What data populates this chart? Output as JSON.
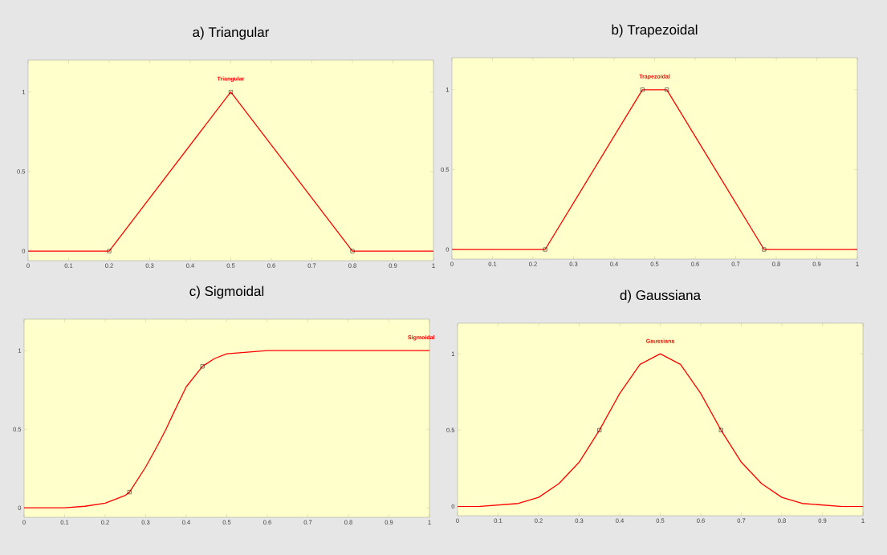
{
  "chart_data": [
    {
      "type": "line",
      "title": "a) Triangular",
      "xlim": [
        0,
        1
      ],
      "ylim": [
        -0.06,
        1.2
      ],
      "xticks": [
        0,
        0.1,
        0.2,
        0.3,
        0.4,
        0.5,
        0.6,
        0.7,
        0.8,
        0.9,
        1
      ],
      "yticks": [
        0,
        0.5,
        1
      ],
      "grid": false,
      "series": [
        {
          "name": "Triangular",
          "color": "#ff0000",
          "marker": "none",
          "x": [
            0,
            0.2,
            0.5,
            0.8,
            1
          ],
          "values": [
            0,
            0,
            1,
            0,
            0
          ]
        },
        {
          "color": "#000000",
          "type": "scatter",
          "marker": "square",
          "x": [
            0.2,
            0.5,
            0.8
          ],
          "values": [
            0,
            1,
            0
          ]
        }
      ]
    },
    {
      "type": "line",
      "title": "b) Trapezoidal",
      "xlim": [
        0,
        1
      ],
      "ylim": [
        -0.06,
        1.2
      ],
      "xticks": [
        0,
        0.1,
        0.2,
        0.3,
        0.4,
        0.5,
        0.6,
        0.7,
        0.8,
        0.9,
        1
      ],
      "yticks": [
        0,
        0.5,
        1
      ],
      "grid": false,
      "series": [
        {
          "name": "Trapezoidal",
          "color": "#ff0000",
          "marker": "none",
          "x": [
            0,
            0.23,
            0.47,
            0.53,
            0.77,
            1
          ],
          "values": [
            0,
            0,
            1,
            1,
            0,
            0
          ]
        },
        {
          "color": "#000000",
          "type": "scatter",
          "marker": "square",
          "x": [
            0.23,
            0.47,
            0.53,
            0.77
          ],
          "values": [
            0,
            1,
            1,
            0
          ]
        }
      ]
    },
    {
      "type": "line",
      "title": "c) Sigmoidal",
      "xlim": [
        0,
        1
      ],
      "ylim": [
        -0.06,
        1.2
      ],
      "xticks": [
        0,
        0.1,
        0.2,
        0.3,
        0.4,
        0.5,
        0.6,
        0.7,
        0.8,
        0.9,
        1
      ],
      "yticks": [
        0,
        0.5,
        1
      ],
      "grid": false,
      "series": [
        {
          "name": "Sigmoidal",
          "color": "#ff0000",
          "marker": "none",
          "x": [
            0,
            0.1,
            0.15,
            0.2,
            0.25,
            0.26,
            0.3,
            0.33,
            0.35,
            0.37,
            0.4,
            0.44,
            0.47,
            0.5,
            0.55,
            0.6,
            0.7,
            0.8,
            0.9,
            1
          ],
          "values": [
            0,
            0,
            0.01,
            0.03,
            0.08,
            0.1,
            0.26,
            0.4,
            0.5,
            0.61,
            0.77,
            0.9,
            0.95,
            0.98,
            0.99,
            1,
            1,
            1,
            1,
            1
          ]
        },
        {
          "color": "#000000",
          "type": "scatter",
          "marker": "square",
          "x": [
            0.26,
            0.44
          ],
          "values": [
            0.1,
            0.9
          ]
        }
      ]
    },
    {
      "type": "line",
      "title": "d) Gaussiana",
      "xlim": [
        0,
        1
      ],
      "ylim": [
        -0.06,
        1.2
      ],
      "xticks": [
        0,
        0.1,
        0.2,
        0.3,
        0.4,
        0.5,
        0.6,
        0.7,
        0.8,
        0.9,
        1
      ],
      "yticks": [
        0,
        0.5,
        1
      ],
      "grid": false,
      "series": [
        {
          "name": "Gaussiana",
          "color": "#ff0000",
          "marker": "none",
          "x": [
            0,
            0.05,
            0.1,
            0.15,
            0.2,
            0.25,
            0.3,
            0.35,
            0.4,
            0.45,
            0.5,
            0.55,
            0.6,
            0.65,
            0.7,
            0.75,
            0.8,
            0.85,
            0.9,
            0.95,
            1
          ],
          "values": [
            0,
            0,
            0.01,
            0.02,
            0.06,
            0.15,
            0.29,
            0.5,
            0.74,
            0.93,
            1,
            0.93,
            0.74,
            0.5,
            0.29,
            0.15,
            0.06,
            0.02,
            0.01,
            0,
            0
          ]
        },
        {
          "color": "#000000",
          "type": "scatter",
          "marker": "square",
          "x": [
            0.35,
            0.65
          ],
          "values": [
            0.5,
            0.5
          ]
        }
      ]
    }
  ]
}
